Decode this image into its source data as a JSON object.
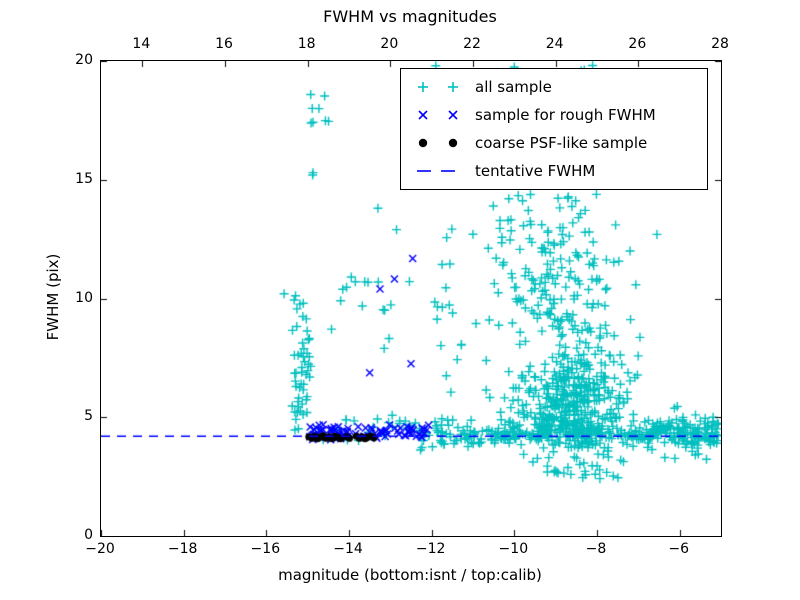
{
  "chart_data": {
    "type": "scatter",
    "title": "FWHM vs magnitudes",
    "xlabel": "magnitude (bottom:isnt / top:calib)",
    "ylabel": "FWHM (pix)",
    "grid": false,
    "legend_position": "upper right",
    "background_color": "#ffffff",
    "axis_color": "#000000",
    "x_bottom_axis": {
      "name": "isnt magnitude",
      "range": [
        -20,
        -5
      ],
      "tick_values": [
        -20,
        -18,
        -16,
        -14,
        -12,
        -10,
        -8,
        -6
      ],
      "tick_labels": [
        "−20",
        "−18",
        "−16",
        "−14",
        "−12",
        "−10",
        "−8",
        "−6"
      ]
    },
    "x_top_axis": {
      "name": "calib magnitude",
      "range": [
        13,
        28
      ],
      "tick_values": [
        14,
        16,
        18,
        20,
        22,
        24,
        26,
        28
      ],
      "tick_labels": [
        "14",
        "16",
        "18",
        "20",
        "22",
        "24",
        "26",
        "28"
      ]
    },
    "y_axis": {
      "range": [
        0,
        20
      ],
      "tick_values": [
        0,
        5,
        10,
        15,
        20
      ],
      "tick_labels": [
        "0",
        "5",
        "10",
        "15",
        "20"
      ]
    },
    "tentative_fwhm_value": 4.2,
    "random_seed": 7,
    "series": [
      {
        "name": "all_sample",
        "label": "all sample",
        "marker": "plus",
        "color": "#00bfbf",
        "clusters": [
          {
            "n": 25,
            "x": {
              "t": "u",
              "a": -15.05,
              "b": -12.3
            },
            "y": {
              "t": "n",
              "mu": 4.5,
              "sd": 0.3,
              "min": 3.9,
              "max": 5.5
            }
          },
          {
            "n": 330,
            "x": {
              "t": "u",
              "a": -12.3,
              "b": -5.05
            },
            "y": {
              "t": "n",
              "mu": 4.3,
              "sd": 0.27,
              "min": 3.4,
              "max": 5.2
            }
          },
          {
            "n": 42,
            "x": {
              "t": "u",
              "a": -15.38,
              "b": -14.92
            },
            "y": {
              "t": "u",
              "a": 4.4,
              "b": 8.8
            }
          },
          {
            "n": 8,
            "x": {
              "t": "u",
              "a": -15.35,
              "b": -14.95
            },
            "y": {
              "t": "u",
              "a": 8.8,
              "b": 10.4
            }
          },
          {
            "n": 8,
            "x": {
              "t": "u",
              "a": -14.95,
              "b": -14.45
            },
            "y": {
              "t": "u",
              "a": 17.2,
              "b": 19.0
            }
          },
          {
            "n": 16,
            "x": {
              "t": "u",
              "a": -14.5,
              "b": -12.4
            },
            "y": {
              "t": "u",
              "a": 7.6,
              "b": 11.9
            }
          },
          {
            "n": 28,
            "x": {
              "t": "u",
              "a": -12.1,
              "b": -10.2
            },
            "y": {
              "t": "u",
              "a": 4.8,
              "b": 13.8
            }
          },
          {
            "n": 48,
            "x": {
              "t": "n",
              "mu": -9.3,
              "sd": 0.8,
              "min": -11.2,
              "max": -6.4
            },
            "y": {
              "t": "u",
              "a": 12.0,
              "b": 14.4
            }
          },
          {
            "n": 120,
            "x": {
              "t": "n",
              "mu": -9.0,
              "sd": 0.75,
              "min": -11.0,
              "max": -6.6
            },
            "y": {
              "t": "u",
              "a": 8.5,
              "b": 12.0
            }
          },
          {
            "n": 380,
            "x": {
              "t": "n",
              "mu": -8.6,
              "sd": 0.65,
              "min": -10.6,
              "max": -6.4
            },
            "y": {
              "t": "n",
              "mu": 5.6,
              "sd": 1.3,
              "min": 4.0,
              "max": 8.5
            }
          },
          {
            "n": 45,
            "x": {
              "t": "n",
              "mu": -8.3,
              "sd": 0.7,
              "min": -9.8,
              "max": -6.3
            },
            "y": {
              "t": "u",
              "a": 2.4,
              "b": 4.0
            }
          },
          {
            "n": 70,
            "x": {
              "t": "u",
              "a": -6.7,
              "b": -5.03
            },
            "y": {
              "t": "n",
              "mu": 4.35,
              "sd": 0.5,
              "min": 3.0,
              "max": 5.8
            }
          },
          {
            "n": 9,
            "x": {
              "t": "u",
              "a": -8.9,
              "b": -7.5
            },
            "y": {
              "t": "u",
              "a": 19.3,
              "b": 19.95
            }
          }
        ],
        "points": [
          [
            -11.9,
            19.8
          ],
          [
            -10.0,
            19.75
          ],
          [
            -14.88,
            15.2
          ],
          [
            -15.57,
            10.2
          ],
          [
            -7.55,
            13.1
          ],
          [
            -7.2,
            12.0
          ],
          [
            -6.55,
            12.7
          ],
          [
            -13.3,
            13.8
          ],
          [
            -12.85,
            12.9
          ],
          [
            -5.35,
            4.3
          ],
          [
            -5.2,
            4.5
          ],
          [
            -14.87,
            15.3
          ]
        ]
      },
      {
        "name": "rough_fwhm",
        "label": "sample for rough FWHM",
        "marker": "x",
        "color": "#0000ff",
        "clusters": [
          {
            "n": 85,
            "x": {
              "t": "u",
              "a": -15.02,
              "b": -12.05
            },
            "y": {
              "t": "n",
              "mu": 4.35,
              "sd": 0.16,
              "min": 3.95,
              "max": 4.9
            }
          }
        ],
        "points": [
          [
            -12.46,
            11.68
          ],
          [
            -12.9,
            10.82
          ],
          [
            -13.25,
            10.4
          ],
          [
            -12.5,
            7.25
          ],
          [
            -13.5,
            6.87
          ]
        ]
      },
      {
        "name": "coarse_psf",
        "label": "coarse PSF-like sample",
        "marker": "dot",
        "color": "#000000",
        "clusters": [],
        "points": [
          [
            -14.97,
            4.18
          ],
          [
            -14.9,
            4.12
          ],
          [
            -14.83,
            4.2
          ],
          [
            -14.76,
            4.1
          ],
          [
            -14.69,
            4.16
          ],
          [
            -14.62,
            4.22
          ],
          [
            -14.55,
            4.12
          ],
          [
            -14.48,
            4.18
          ],
          [
            -14.41,
            4.1
          ],
          [
            -14.34,
            4.2
          ],
          [
            -14.27,
            4.15
          ],
          [
            -14.2,
            4.1
          ],
          [
            -14.06,
            4.18
          ],
          [
            -13.99,
            4.12
          ],
          [
            -13.82,
            4.2
          ],
          [
            -13.75,
            4.12
          ],
          [
            -13.68,
            4.18
          ],
          [
            -13.61,
            4.1
          ],
          [
            -13.54,
            4.16
          ],
          [
            -13.47,
            4.2
          ],
          [
            -13.4,
            4.14
          ]
        ]
      },
      {
        "name": "tentative_fwhm",
        "label": "tentative FWHM",
        "marker": "dash",
        "color": "#0000ff",
        "line_y": 4.2,
        "line_style": "dashed"
      }
    ]
  }
}
